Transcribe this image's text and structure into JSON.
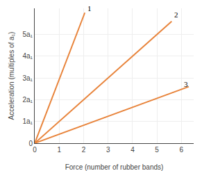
{
  "chart_data": {
    "type": "line",
    "x_label": "Force (number of rubber bands)",
    "y_label": "Acceleration (multiples of a₁)",
    "color": "#E8833A",
    "series": [
      {
        "x": [
          0,
          2.05
        ],
        "values": [
          0,
          6.0
        ]
      },
      {
        "x": [
          0,
          5.6
        ],
        "values": [
          0,
          5.6
        ]
      },
      {
        "x": [
          0,
          6.3
        ],
        "values": [
          0,
          2.6
        ]
      }
    ],
    "annotations": [
      {
        "text": "1",
        "x": 2.1,
        "y": 5.95
      },
      {
        "text": "2",
        "x": 5.65,
        "y": 5.65
      },
      {
        "text": "3",
        "x": 6.05,
        "y": 2.45
      }
    ],
    "xlim": [
      0,
      6.5
    ],
    "xticks": [
      0,
      1,
      2,
      3,
      4,
      5,
      6
    ],
    "ylim": [
      0,
      6.2
    ],
    "yticks": [
      0,
      {
        "value": 1,
        "label": "1a₁"
      },
      {
        "value": 2,
        "label": "2a₁"
      },
      {
        "value": 3,
        "label": "3a₁"
      },
      {
        "value": 4,
        "label": "4a₁"
      },
      {
        "value": 5,
        "label": "5a₁"
      }
    ],
    "grid": true
  }
}
